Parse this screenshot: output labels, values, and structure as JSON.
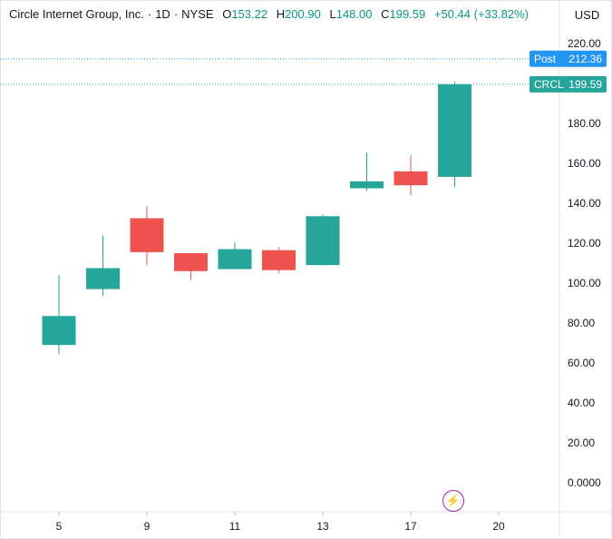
{
  "header": {
    "name": "Circle Internet Group, Inc.",
    "interval": "1D",
    "exchange": "NYSE",
    "o_label": "O",
    "o_value": "153.22",
    "h_label": "H",
    "h_value": "200.90",
    "l_label": "L",
    "l_value": "148.00",
    "c_label": "C",
    "c_value": "199.59",
    "change": "+50.44 (+33.82%)"
  },
  "currency": "USD",
  "colors": {
    "up": "#26a69a",
    "down": "#ef5350",
    "post": "#2196f3",
    "grid_line": "#26a69a",
    "bolt": "#9c27b0"
  },
  "icons": {
    "bolt": "lightning-bolt-icon"
  },
  "bolt_glyph": "⚡",
  "chart_data": {
    "type": "candlestick",
    "x_ticks": [
      "5",
      "9",
      "11",
      "13",
      "17",
      "20"
    ],
    "y_ticks": [
      "220.00",
      "200.00",
      "180.00",
      "160.00",
      "140.00",
      "120.00",
      "100.00",
      "80.00",
      "60.00",
      "40.00",
      "20.00",
      "0.0000"
    ],
    "ylim": [
      -14,
      232
    ],
    "candles": [
      {
        "date": "5",
        "open": 69,
        "high": 104,
        "low": 64.5,
        "close": 83.5
      },
      {
        "date": "6",
        "open": 97,
        "high": 124,
        "low": 93.5,
        "close": 107.5
      },
      {
        "date": "9",
        "open": 132.5,
        "high": 138.5,
        "low": 109,
        "close": 115.5
      },
      {
        "date": "10",
        "open": 115,
        "high": 115,
        "low": 101.5,
        "close": 106
      },
      {
        "date": "11",
        "open": 107,
        "high": 120.5,
        "low": 107,
        "close": 117
      },
      {
        "date": "12",
        "open": 116.5,
        "high": 118,
        "low": 105,
        "close": 106.5
      },
      {
        "date": "13",
        "open": 109,
        "high": 134.5,
        "low": 109,
        "close": 133.5
      },
      {
        "date": "16",
        "open": 147.5,
        "high": 165.5,
        "low": 146,
        "close": 151
      },
      {
        "date": "17",
        "open": 156,
        "high": 164,
        "low": 144,
        "close": 149
      },
      {
        "date": "18",
        "open": 153.22,
        "high": 200.9,
        "low": 148,
        "close": 199.59
      }
    ],
    "price_lines": [
      {
        "label": "Post",
        "value": "212.36",
        "price": 212.36
      },
      {
        "label": "CRCL",
        "value": "199.59",
        "price": 199.59
      }
    ]
  }
}
